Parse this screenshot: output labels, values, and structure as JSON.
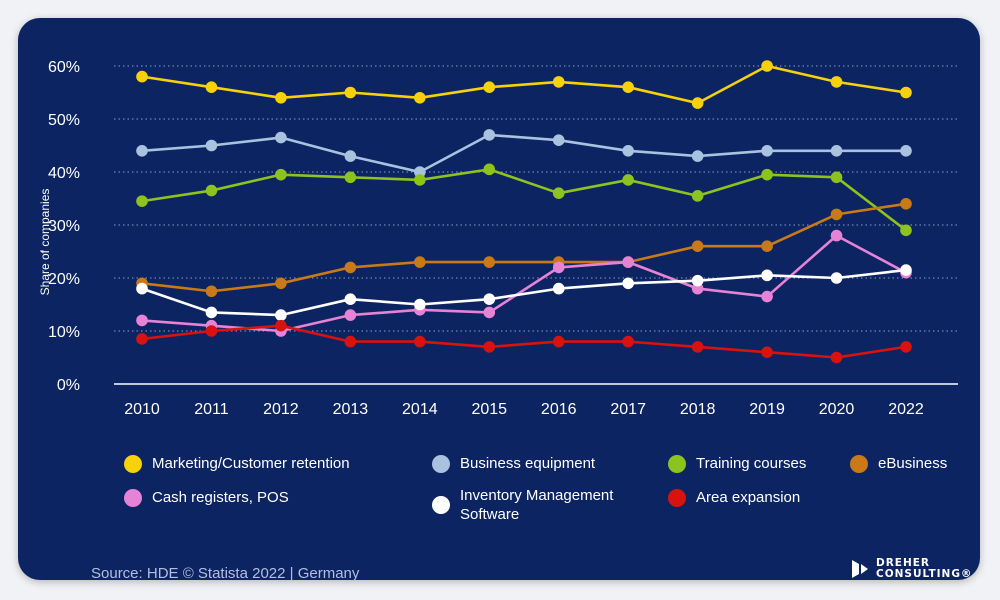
{
  "chart_data": {
    "type": "line",
    "title": "",
    "xlabel": "",
    "ylabel": "Share of companies",
    "ylim": [
      0,
      60
    ],
    "yticks": [
      0,
      10,
      20,
      30,
      40,
      50,
      60
    ],
    "ytick_labels": [
      "0%",
      "10%",
      "20%",
      "30%",
      "40%",
      "50%",
      "60%"
    ],
    "grid": "horizontal dotted",
    "legend_position": "bottom",
    "x": [
      "2010",
      "2011",
      "2012",
      "2013",
      "2014",
      "2015",
      "2016",
      "2017",
      "2018",
      "2019",
      "2020",
      "2022"
    ],
    "series": [
      {
        "name": "Marketing/Customer retention",
        "color": "#f7d10a",
        "values": [
          58,
          56,
          54,
          55,
          54,
          56,
          57,
          56,
          53,
          60,
          57,
          55
        ]
      },
      {
        "name": "Business equipment",
        "color": "#a9c2e0",
        "values": [
          44,
          45,
          46.5,
          43,
          40,
          47,
          46,
          44,
          43,
          44,
          44,
          44
        ]
      },
      {
        "name": "Training courses",
        "color": "#8ec21e",
        "values": [
          34.5,
          36.5,
          39.5,
          39,
          38.5,
          40.5,
          36,
          38.5,
          35.5,
          39.5,
          39,
          29
        ]
      },
      {
        "name": "eBusiness",
        "color": "#c97a16",
        "values": [
          19,
          17.5,
          19,
          22,
          23,
          23,
          23,
          23,
          26,
          26,
          32,
          34
        ]
      },
      {
        "name": "Cash registers, POS",
        "color": "#e783d6",
        "values": [
          12,
          11,
          10,
          13,
          14,
          13.5,
          22,
          23,
          18,
          16.5,
          28,
          21
        ]
      },
      {
        "name": "Inventory Management Software",
        "color": "#ffffff",
        "values": [
          18,
          13.5,
          13,
          16,
          15,
          16,
          18,
          19,
          19.5,
          20.5,
          20,
          21.5
        ]
      },
      {
        "name": "Area expansion",
        "color": "#d8120f",
        "values": [
          8.5,
          10,
          11,
          8,
          8,
          7,
          8,
          8,
          7,
          6,
          5,
          7
        ]
      }
    ]
  },
  "source": "Source: HDE © Statista 2022 | Germany",
  "logo": {
    "line1": "DREHER",
    "line2": "CONSULTING®"
  }
}
